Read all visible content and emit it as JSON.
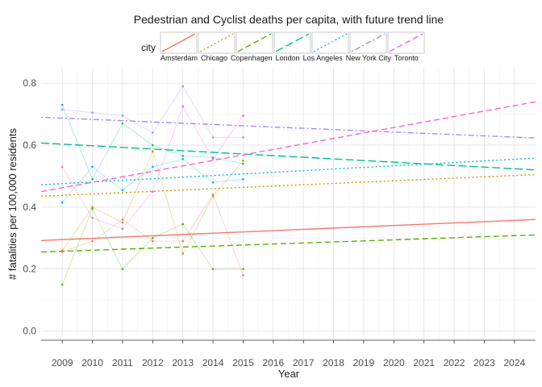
{
  "chart_data": {
    "type": "line",
    "title": "Pedestrian and Cyclist deaths per capita, with future trend line",
    "xlabel": "Year",
    "ylabel": "# fatalities per 100,000 residents",
    "xlim": [
      2008.3,
      2024.7
    ],
    "ylim": [
      -0.03,
      0.85
    ],
    "x_ticks": [
      2009,
      2010,
      2011,
      2012,
      2013,
      2014,
      2015,
      2016,
      2017,
      2018,
      2019,
      2020,
      2021,
      2022,
      2023,
      2024
    ],
    "y_ticks": [
      0.0,
      0.2,
      0.4,
      0.6,
      0.8
    ],
    "y_tick_labels": [
      "0.0",
      "0.2",
      "0.4",
      "0.6",
      "0.8"
    ],
    "grid": true,
    "legend": {
      "title": "city",
      "position": "top"
    },
    "series": [
      {
        "name": "Amsterdam",
        "color": "#F8766D",
        "dash": "solid",
        "x": [
          2009,
          2010,
          2011,
          2012,
          2013,
          2014,
          2015
        ],
        "values": [
          0.255,
          0.29,
          0.36,
          0.29,
          0.29,
          0.44,
          0.18
        ],
        "trend": {
          "x": [
            2008.3,
            2024.7
          ],
          "y": [
            0.292,
            0.36
          ]
        }
      },
      {
        "name": "Chicago",
        "color": "#C49A00",
        "dash": "dotted",
        "x": [
          2009,
          2010,
          2011,
          2012,
          2013,
          2014,
          2015
        ],
        "values": [
          0.26,
          0.4,
          0.35,
          0.58,
          0.25,
          0.435,
          0.55
        ],
        "trend": {
          "x": [
            2008.3,
            2024.7
          ],
          "y": [
            0.435,
            0.505
          ]
        }
      },
      {
        "name": "Copenhagen",
        "color": "#53B400",
        "dash": "dashed",
        "x": [
          2009,
          2010,
          2011,
          2012,
          2013,
          2014,
          2015
        ],
        "values": [
          0.15,
          0.395,
          0.2,
          0.3,
          0.345,
          0.2,
          0.2
        ],
        "trend": {
          "x": [
            2008.3,
            2024.7
          ],
          "y": [
            0.255,
            0.31
          ]
        }
      },
      {
        "name": "London",
        "color": "#00C094",
        "dash": "longdash",
        "x": [
          2009,
          2010,
          2011,
          2012,
          2013,
          2014,
          2015
        ],
        "values": [
          0.73,
          0.49,
          0.67,
          0.6,
          0.565,
          0.56,
          0.54
        ],
        "trend": {
          "x": [
            2008.3,
            2024.7
          ],
          "y": [
            0.607,
            0.52
          ]
        }
      },
      {
        "name": "Los Angeles",
        "color": "#00B6EB",
        "dash": "dotted",
        "x": [
          2009,
          2010,
          2011,
          2012,
          2013,
          2014,
          2015
        ],
        "values": [
          0.415,
          0.53,
          0.455,
          0.53,
          0.555,
          0.48,
          0.49
        ],
        "trend": {
          "x": [
            2008.3,
            2024.7
          ],
          "y": [
            0.472,
            0.558
          ]
        }
      },
      {
        "name": "New York City",
        "color": "#A58AFF",
        "dash": "dotdash",
        "x": [
          2009,
          2010,
          2011,
          2012,
          2013,
          2014,
          2015
        ],
        "values": [
          0.715,
          0.705,
          0.695,
          0.64,
          0.79,
          0.625,
          0.625
        ],
        "trend": {
          "x": [
            2008.3,
            2024.7
          ],
          "y": [
            0.69,
            0.623
          ]
        }
      },
      {
        "name": "Toronto",
        "color": "#FB61D7",
        "dash": "dashed",
        "x": [
          2009,
          2010,
          2011,
          2012,
          2013,
          2014,
          2015
        ],
        "values": [
          0.53,
          0.365,
          0.33,
          0.45,
          0.725,
          0.555,
          0.695
        ],
        "trend": {
          "x": [
            2008.3,
            2024.7
          ],
          "y": [
            0.45,
            0.74
          ]
        }
      }
    ]
  }
}
